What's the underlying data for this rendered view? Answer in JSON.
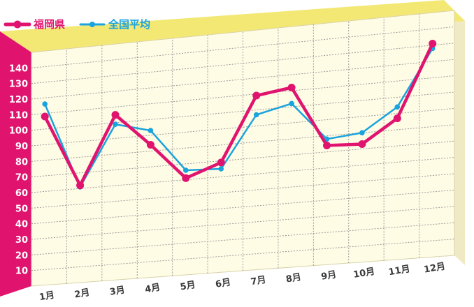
{
  "colors": {
    "fukuoka": "#e0146e",
    "national": "#1aa3dc",
    "plot_bg": "#fffce6",
    "top_band": "#f4e875",
    "top_side": "#e9d858",
    "left_band": "#e0146e",
    "grid": "#9a9a9a"
  },
  "legend": [
    {
      "name": "福岡県",
      "color": "#e0146e"
    },
    {
      "name": "全国平均",
      "color": "#1aa3dc"
    }
  ],
  "chart_data": {
    "type": "line",
    "categories": [
      "1月",
      "2月",
      "3月",
      "4月",
      "5月",
      "6月",
      "7月",
      "8月",
      "9月",
      "10月",
      "11月",
      "12月"
    ],
    "series": [
      {
        "name": "福岡県",
        "values": [
          108,
          62,
          105,
          84,
          61,
          69,
          109,
          112,
          74,
          73,
          87,
          131
        ]
      },
      {
        "name": "全国平均",
        "values": [
          116,
          61,
          99,
          93,
          66,
          65,
          97,
          102,
          78,
          80,
          94,
          128
        ]
      }
    ],
    "ylim": [
      0,
      150
    ],
    "yticks": [
      10,
      20,
      30,
      40,
      50,
      60,
      70,
      80,
      90,
      100,
      110,
      120,
      130,
      140
    ],
    "grid": true,
    "legend_position": "top-left"
  }
}
